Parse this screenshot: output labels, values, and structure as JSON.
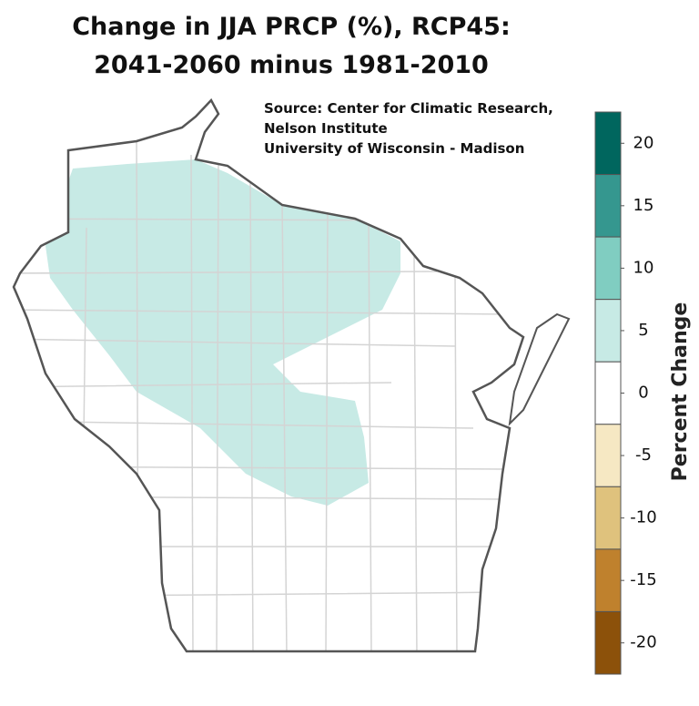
{
  "title": [
    "Change in JJA PRCP (%), RCP45:",
    "2041-2060 minus 1981-2010"
  ],
  "source": [
    "Source:  Center for Climatic Research,",
    "Nelson Institute",
    "University of Wisconsin - Madison"
  ],
  "colorbar": {
    "label": "Percent Change",
    "lim": [
      22.5,
      -22.5
    ],
    "bins": [
      22.5,
      17.5,
      12.5,
      7.5,
      2.5,
      -2.5,
      -7.5,
      -12.5,
      -17.5,
      -22.5
    ],
    "colors": [
      "#00665e",
      "#35978f",
      "#80cdc1",
      "#c7eae5",
      "#ffffff",
      "#f6e8c3",
      "#dfc27d",
      "#bf812d",
      "#8c510a"
    ],
    "ticks": [
      20,
      15,
      10,
      5,
      0,
      -5,
      -10,
      -15,
      -20
    ]
  }
}
